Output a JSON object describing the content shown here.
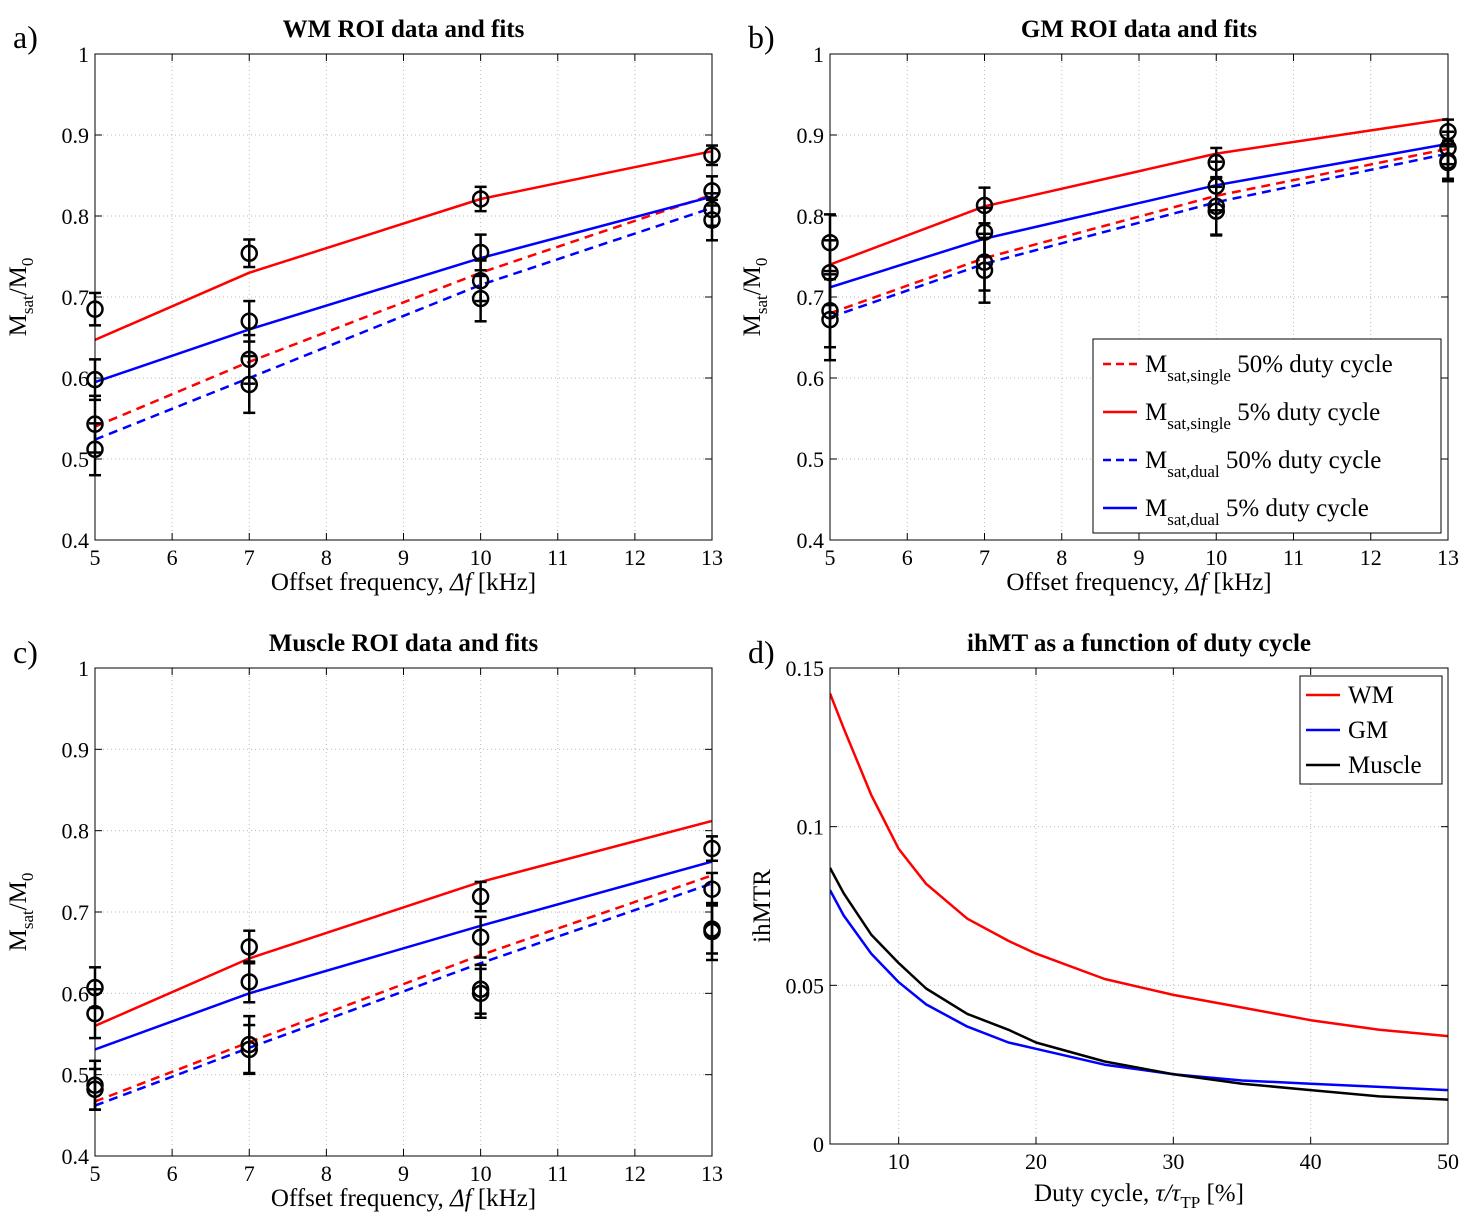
{
  "colors": {
    "red": "#ff0000",
    "blue": "#0000ff",
    "black": "#000000"
  },
  "chart_data": [
    {
      "id": "a",
      "panel_label": "a)",
      "type": "line",
      "title": "WM ROI data and fits",
      "xlabel": {
        "main": "Offset frequency, ",
        "sym": "Δf",
        "unit": " [kHz]"
      },
      "ylabel": {
        "m1": "M",
        "s1": "sat",
        "m2": "/M",
        "s2": "0"
      },
      "xlim": [
        5,
        13
      ],
      "ylim": [
        0.4,
        1
      ],
      "xticks": [
        5,
        6,
        7,
        8,
        9,
        10,
        11,
        12,
        13
      ],
      "yticks": [
        0.4,
        0.5,
        0.6,
        0.7,
        0.8,
        0.9,
        1
      ],
      "yticklabels": [
        "0.4",
        "0.5",
        "0.6",
        "0.7",
        "0.8",
        "0.9",
        "1"
      ],
      "series": [
        {
          "name": "M_sat,single 50% duty cycle",
          "color": "red",
          "dash": true,
          "x": [
            5,
            7,
            10,
            13
          ],
          "y": [
            0.54,
            0.62,
            0.73,
            0.826
          ]
        },
        {
          "name": "M_sat,single 5% duty cycle",
          "color": "red",
          "dash": false,
          "x": [
            5,
            7,
            10,
            13
          ],
          "y": [
            0.647,
            0.73,
            0.821,
            0.88
          ]
        },
        {
          "name": "M_sat,dual 50% duty cycle",
          "color": "blue",
          "dash": true,
          "x": [
            5,
            7,
            10,
            13
          ],
          "y": [
            0.524,
            0.6,
            0.715,
            0.81
          ]
        },
        {
          "name": "M_sat,dual 5% duty cycle",
          "color": "blue",
          "dash": false,
          "x": [
            5,
            7,
            10,
            13
          ],
          "y": [
            0.595,
            0.66,
            0.748,
            0.824
          ]
        }
      ],
      "data_points": [
        {
          "x": 5,
          "y": 0.685,
          "err": 0.02
        },
        {
          "x": 5,
          "y": 0.598,
          "err": 0.025
        },
        {
          "x": 5,
          "y": 0.543,
          "err": 0.035
        },
        {
          "x": 5,
          "y": 0.512,
          "err": 0.032
        },
        {
          "x": 7,
          "y": 0.754,
          "err": 0.017
        },
        {
          "x": 7,
          "y": 0.67,
          "err": 0.025
        },
        {
          "x": 7,
          "y": 0.623,
          "err": 0.03
        },
        {
          "x": 7,
          "y": 0.592,
          "err": 0.035
        },
        {
          "x": 10,
          "y": 0.821,
          "err": 0.015
        },
        {
          "x": 10,
          "y": 0.755,
          "err": 0.022
        },
        {
          "x": 10,
          "y": 0.72,
          "err": 0.025
        },
        {
          "x": 10,
          "y": 0.698,
          "err": 0.028
        },
        {
          "x": 13,
          "y": 0.875,
          "err": 0.012
        },
        {
          "x": 13,
          "y": 0.831,
          "err": 0.018
        },
        {
          "x": 13,
          "y": 0.808,
          "err": 0.02
        },
        {
          "x": 13,
          "y": 0.795,
          "err": 0.025
        }
      ],
      "legend": null
    },
    {
      "id": "b",
      "panel_label": "b)",
      "type": "line",
      "title": "GM ROI data and fits",
      "xlabel": {
        "main": "Offset frequency, ",
        "sym": "Δf",
        "unit": " [kHz]"
      },
      "ylabel": {
        "m1": "M",
        "s1": "sat",
        "m2": "/M",
        "s2": "0"
      },
      "xlim": [
        5,
        13
      ],
      "ylim": [
        0.4,
        1
      ],
      "xticks": [
        5,
        6,
        7,
        8,
        9,
        10,
        11,
        12,
        13
      ],
      "yticks": [
        0.4,
        0.5,
        0.6,
        0.7,
        0.8,
        0.9,
        1
      ],
      "yticklabels": [
        "0.4",
        "0.5",
        "0.6",
        "0.7",
        "0.8",
        "0.9",
        "1"
      ],
      "series": [
        {
          "name": "M_sat,single 50% duty cycle",
          "color": "red",
          "dash": true,
          "x": [
            5,
            7,
            10,
            13
          ],
          "y": [
            0.68,
            0.748,
            0.825,
            0.883
          ]
        },
        {
          "name": "M_sat,single 5% duty cycle",
          "color": "red",
          "dash": false,
          "x": [
            5,
            7,
            10,
            13
          ],
          "y": [
            0.74,
            0.812,
            0.877,
            0.92
          ]
        },
        {
          "name": "M_sat,dual 50% duty cycle",
          "color": "blue",
          "dash": true,
          "x": [
            5,
            7,
            10,
            13
          ],
          "y": [
            0.675,
            0.741,
            0.817,
            0.877
          ]
        },
        {
          "name": "M_sat,dual 5% duty cycle",
          "color": "blue",
          "dash": false,
          "x": [
            5,
            7,
            10,
            13
          ],
          "y": [
            0.712,
            0.772,
            0.838,
            0.889
          ]
        }
      ],
      "data_points": [
        {
          "x": 5,
          "y": 0.767,
          "err": 0.035
        },
        {
          "x": 5,
          "y": 0.73,
          "err": 0.04
        },
        {
          "x": 5,
          "y": 0.683,
          "err": 0.045
        },
        {
          "x": 5,
          "y": 0.672,
          "err": 0.05
        },
        {
          "x": 7,
          "y": 0.813,
          "err": 0.022
        },
        {
          "x": 7,
          "y": 0.78,
          "err": 0.03
        },
        {
          "x": 7,
          "y": 0.743,
          "err": 0.035
        },
        {
          "x": 7,
          "y": 0.733,
          "err": 0.04
        },
        {
          "x": 10,
          "y": 0.866,
          "err": 0.018
        },
        {
          "x": 10,
          "y": 0.837,
          "err": 0.03
        },
        {
          "x": 10,
          "y": 0.812,
          "err": 0.035
        },
        {
          "x": 10,
          "y": 0.806,
          "err": 0.03
        },
        {
          "x": 13,
          "y": 0.904,
          "err": 0.015
        },
        {
          "x": 13,
          "y": 0.884,
          "err": 0.02
        },
        {
          "x": 13,
          "y": 0.868,
          "err": 0.025
        },
        {
          "x": 13,
          "y": 0.866,
          "err": 0.02
        }
      ],
      "legend": {
        "position": "bottom-right",
        "items": [
          {
            "color": "red",
            "dash": true,
            "m": "M",
            "sub": "sat,single",
            "text": " 50% duty cycle"
          },
          {
            "color": "red",
            "dash": false,
            "m": "M",
            "sub": "sat,single",
            "text": " 5% duty cycle"
          },
          {
            "color": "blue",
            "dash": true,
            "m": "M",
            "sub": "sat,dual",
            "text": " 50% duty cycle"
          },
          {
            "color": "blue",
            "dash": false,
            "m": "M",
            "sub": "sat,dual",
            "text": " 5% duty cycle"
          }
        ]
      }
    },
    {
      "id": "c",
      "panel_label": "c)",
      "type": "line",
      "title": "Muscle ROI data and fits",
      "xlabel": {
        "main": "Offset frequency, ",
        "sym": "Δf",
        "unit": " [kHz]"
      },
      "ylabel": {
        "m1": "M",
        "s1": "sat",
        "m2": "/M",
        "s2": "0"
      },
      "xlim": [
        5,
        13
      ],
      "ylim": [
        0.4,
        1
      ],
      "xticks": [
        5,
        6,
        7,
        8,
        9,
        10,
        11,
        12,
        13
      ],
      "yticks": [
        0.4,
        0.5,
        0.6,
        0.7,
        0.8,
        0.9,
        1
      ],
      "yticklabels": [
        "0.4",
        "0.5",
        "0.6",
        "0.7",
        "0.8",
        "0.9",
        "1"
      ],
      "series": [
        {
          "name": "M_sat,single 50% duty cycle",
          "color": "red",
          "dash": true,
          "x": [
            5,
            7,
            10,
            13
          ],
          "y": [
            0.467,
            0.54,
            0.647,
            0.745
          ]
        },
        {
          "name": "M_sat,single 5% duty cycle",
          "color": "red",
          "dash": false,
          "x": [
            5,
            7,
            10,
            13
          ],
          "y": [
            0.56,
            0.643,
            0.737,
            0.812
          ]
        },
        {
          "name": "M_sat,dual 50% duty cycle",
          "color": "blue",
          "dash": true,
          "x": [
            5,
            7,
            10,
            13
          ],
          "y": [
            0.462,
            0.533,
            0.637,
            0.735
          ]
        },
        {
          "name": "M_sat,dual 5% duty cycle",
          "color": "blue",
          "dash": false,
          "x": [
            5,
            7,
            10,
            13
          ],
          "y": [
            0.531,
            0.6,
            0.683,
            0.762
          ]
        }
      ],
      "data_points": [
        {
          "x": 5,
          "y": 0.607,
          "err": 0.025
        },
        {
          "x": 5,
          "y": 0.575,
          "err": 0.03
        },
        {
          "x": 5,
          "y": 0.487,
          "err": 0.03
        },
        {
          "x": 5,
          "y": 0.482,
          "err": 0.025
        },
        {
          "x": 7,
          "y": 0.657,
          "err": 0.02
        },
        {
          "x": 7,
          "y": 0.614,
          "err": 0.025
        },
        {
          "x": 7,
          "y": 0.537,
          "err": 0.035
        },
        {
          "x": 7,
          "y": 0.531,
          "err": 0.03
        },
        {
          "x": 10,
          "y": 0.719,
          "err": 0.018
        },
        {
          "x": 10,
          "y": 0.669,
          "err": 0.025
        },
        {
          "x": 10,
          "y": 0.605,
          "err": 0.03
        },
        {
          "x": 10,
          "y": 0.6,
          "err": 0.03
        },
        {
          "x": 13,
          "y": 0.778,
          "err": 0.015
        },
        {
          "x": 13,
          "y": 0.728,
          "err": 0.02
        },
        {
          "x": 13,
          "y": 0.679,
          "err": 0.03
        },
        {
          "x": 13,
          "y": 0.676,
          "err": 0.035
        }
      ],
      "legend": null
    },
    {
      "id": "d",
      "panel_label": "d)",
      "type": "line",
      "title": "ihMT as a function of duty cycle",
      "xlabel": {
        "main": "Duty cycle, ",
        "sym": "τ/τ",
        "sub": "TP",
        "unit": " [%]"
      },
      "ylabel": {
        "text": "ihMTR"
      },
      "xlim": [
        5,
        50
      ],
      "ylim": [
        0,
        0.15
      ],
      "xticks": [
        10,
        20,
        30,
        40,
        50
      ],
      "yticks": [
        0,
        0.05,
        0.1,
        0.15
      ],
      "yticklabels": [
        "0",
        "0.05",
        "0.1",
        "0.15"
      ],
      "series": [
        {
          "name": "WM",
          "color": "red",
          "x": [
            5,
            6,
            8,
            10,
            12,
            15,
            18,
            20,
            25,
            30,
            35,
            40,
            45,
            50
          ],
          "y": [
            0.142,
            0.131,
            0.11,
            0.093,
            0.082,
            0.071,
            0.064,
            0.06,
            0.052,
            0.047,
            0.043,
            0.039,
            0.036,
            0.034
          ]
        },
        {
          "name": "GM",
          "color": "blue",
          "x": [
            5,
            6,
            8,
            10,
            12,
            15,
            18,
            20,
            25,
            30,
            35,
            40,
            45,
            50
          ],
          "y": [
            0.08,
            0.072,
            0.06,
            0.051,
            0.044,
            0.037,
            0.032,
            0.03,
            0.025,
            0.022,
            0.02,
            0.019,
            0.018,
            0.017
          ]
        },
        {
          "name": "Muscle",
          "color": "black",
          "x": [
            5,
            6,
            8,
            10,
            12,
            15,
            18,
            20,
            25,
            30,
            35,
            40,
            45,
            50
          ],
          "y": [
            0.087,
            0.079,
            0.066,
            0.057,
            0.049,
            0.041,
            0.036,
            0.032,
            0.026,
            0.022,
            0.019,
            0.017,
            0.015,
            0.014
          ]
        }
      ],
      "data_points": [],
      "legend": {
        "position": "top-right",
        "items": [
          {
            "color": "red",
            "text": "WM"
          },
          {
            "color": "blue",
            "text": "GM"
          },
          {
            "color": "black",
            "text": "Muscle"
          }
        ]
      }
    }
  ]
}
